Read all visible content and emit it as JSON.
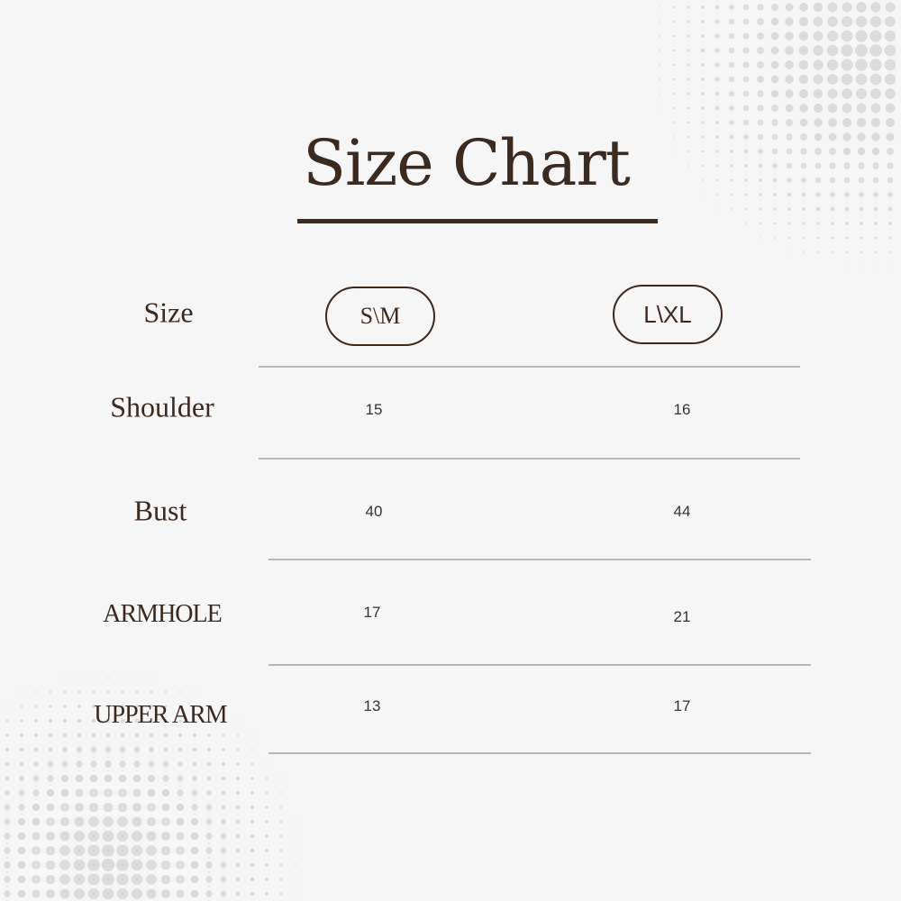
{
  "title": "Size Chart",
  "header": {
    "label": "Size",
    "sizes": [
      "S\\M",
      "L\\XL"
    ]
  },
  "rows": [
    {
      "label": "Shoulder",
      "values": [
        "15",
        "16"
      ]
    },
    {
      "label": "Bust",
      "values": [
        "40",
        "44"
      ]
    },
    {
      "label": "ARMHOLE",
      "values": [
        "17",
        "21"
      ]
    },
    {
      "label": "UPPER ARM",
      "values": [
        "13",
        "17"
      ]
    }
  ],
  "colors": {
    "text": "#3b2a20",
    "background": "#f6f6f6",
    "rule": "#b8b8b8"
  }
}
